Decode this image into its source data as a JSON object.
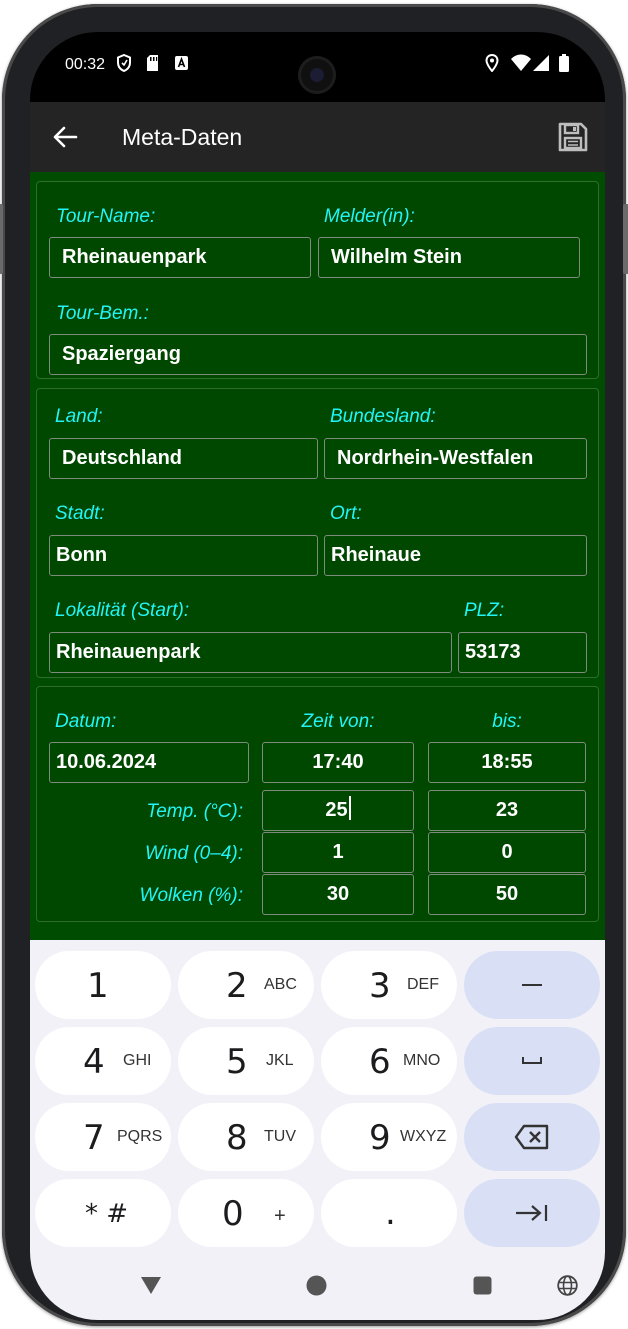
{
  "status": {
    "time": "00:32"
  },
  "appbar": {
    "title": "Meta-Daten",
    "back_icon": "arrow-left-icon",
    "save_icon": "floppy-disk-icon"
  },
  "colors": {
    "content_bg": "#004c00",
    "section_bg": "#004700",
    "label": "#22f5f5",
    "appbar_bg": "#242424",
    "keyboard_bg": "#f3f1f8",
    "key_fn": "#d9e0f6"
  },
  "tour": {
    "name_label": "Tour-Name:",
    "name_value": "Rheinauenpark",
    "reporter_label": "Melder(in):",
    "reporter_value": "Wilhelm Stein",
    "remark_label": "Tour-Bem.:",
    "remark_value": "Spaziergang"
  },
  "location": {
    "country_label": "Land:",
    "country_value": "Deutschland",
    "state_label": "Bundesland:",
    "state_value": "Nordrhein-Westfalen",
    "city_label": "Stadt:",
    "city_value": "Bonn",
    "place_label": "Ort:",
    "place_value": "Rheinaue",
    "locality_label": "Lokalität (Start):",
    "locality_value": "Rheinauenpark",
    "zip_label": "PLZ:",
    "zip_value": "53173"
  },
  "conditions": {
    "date_label": "Datum:",
    "date_value": "10.06.2024",
    "time_from_label": "Zeit von:",
    "time_from_value": "17:40",
    "time_to_label": "bis:",
    "time_to_value": "18:55",
    "temp_label": "Temp. (°C):",
    "temp_from": "25",
    "temp_to": "23",
    "wind_label": "Wind (0–4):",
    "wind_from": "1",
    "wind_to": "0",
    "clouds_label": "Wolken (%):",
    "clouds_from": "30",
    "clouds_to": "50"
  },
  "keyboard": {
    "k1": {
      "num": "1",
      "letters": ""
    },
    "k2": {
      "num": "2",
      "letters": "ABC"
    },
    "k3": {
      "num": "3",
      "letters": "DEF"
    },
    "k4": {
      "num": "4",
      "letters": "GHI"
    },
    "k5": {
      "num": "5",
      "letters": "JKL"
    },
    "k6": {
      "num": "6",
      "letters": "MNO"
    },
    "k7": {
      "num": "7",
      "letters": "PQRS"
    },
    "k8": {
      "num": "8",
      "letters": "TUV"
    },
    "k9": {
      "num": "9",
      "letters": "WXYZ"
    },
    "kstar": {
      "num": "* #",
      "letters": ""
    },
    "k0": {
      "num": "0",
      "letters": "+"
    },
    "kdot": {
      "num": ".",
      "letters": ""
    },
    "minus_icon": "minus-icon",
    "space_icon": "space-icon",
    "backspace_icon": "backspace-icon",
    "tab_icon": "tab-next-icon"
  },
  "navbar": {
    "back_icon": "triangle-back-icon",
    "home_icon": "circle-home-icon",
    "recents_icon": "square-recents-icon",
    "language_icon": "globe-icon"
  }
}
